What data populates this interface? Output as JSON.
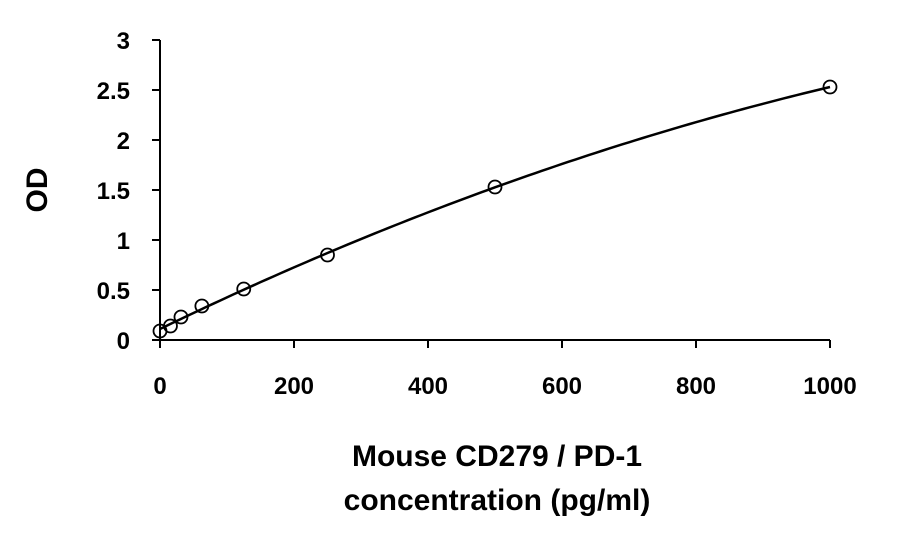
{
  "chart_data": {
    "type": "scatter",
    "xlabel_lines": [
      "Mouse CD279 / PD-1",
      "concentration (pg/ml)"
    ],
    "ylabel": "OD",
    "xlim": [
      0,
      1000
    ],
    "ylim": [
      0,
      3
    ],
    "xticks": [
      0,
      200,
      400,
      600,
      800,
      1000
    ],
    "yticks": [
      0,
      0.5,
      1,
      1.5,
      2,
      2.5,
      3
    ],
    "xtick_labels": [
      "0",
      "200",
      "400",
      "600",
      "800",
      "1000"
    ],
    "ytick_labels": [
      "0",
      "0.5",
      "1",
      "1.5",
      "2",
      "2.5",
      "3"
    ],
    "grid": false,
    "legend": "none",
    "trendline": true,
    "series": [
      {
        "x": [
          0,
          15.6,
          31.3,
          62.5,
          125,
          250,
          500,
          1000
        ],
        "y": [
          0.09,
          0.14,
          0.23,
          0.34,
          0.51,
          0.85,
          1.53,
          2.53
        ]
      }
    ]
  }
}
